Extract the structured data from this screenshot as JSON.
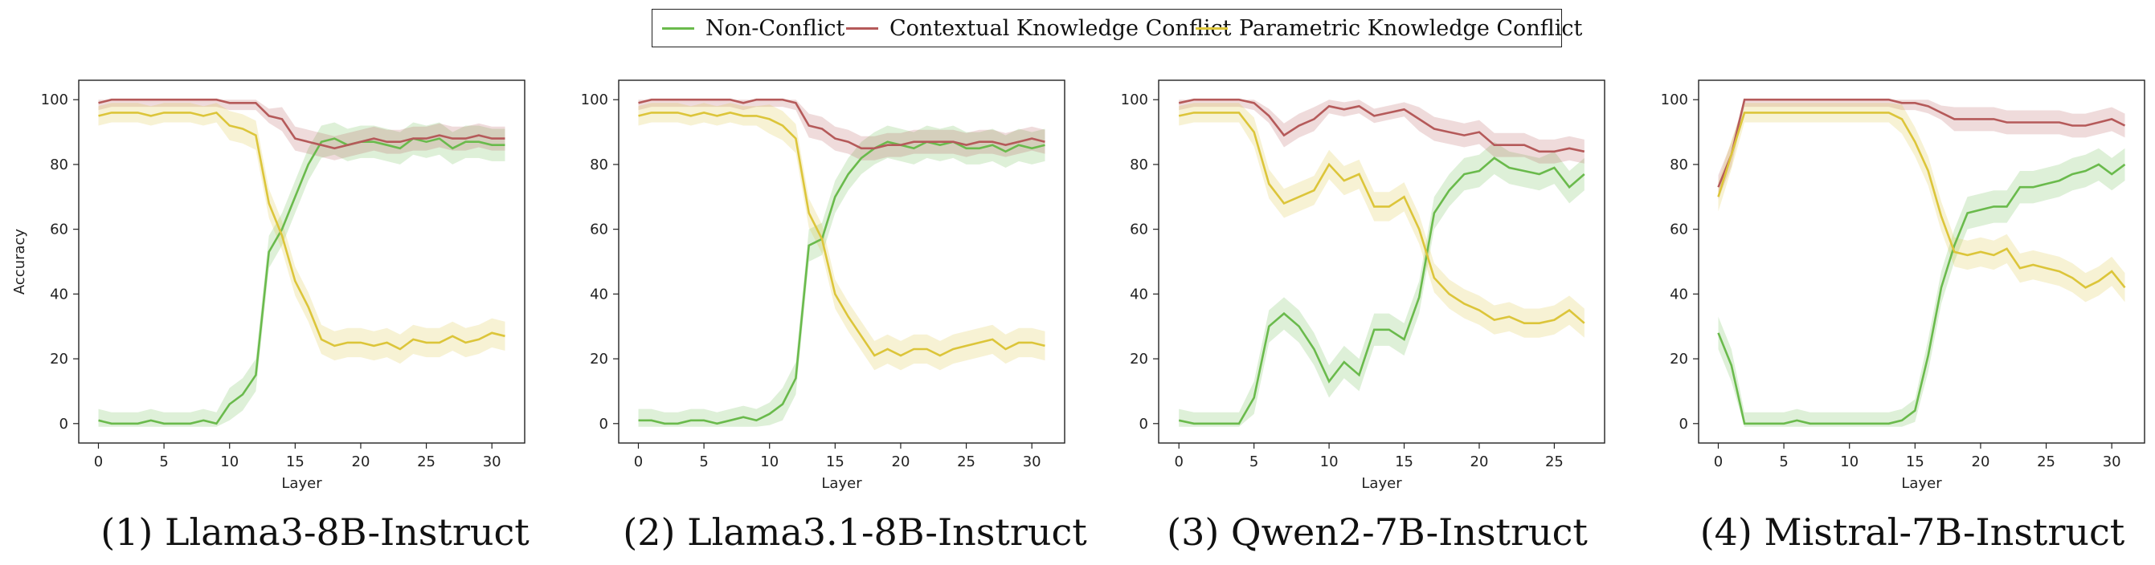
{
  "legend": {
    "items": [
      {
        "label": "Non-Conflict",
        "color": "#6aba4c"
      },
      {
        "label": "Contextual Knowledge Conflict",
        "color": "#b55a5a"
      },
      {
        "label": "Parametric Knowledge Conflict",
        "color": "#dcc53a"
      }
    ]
  },
  "chart_data": [
    {
      "type": "line",
      "title": "(1) Llama3-8B-Instruct",
      "xlabel": "Layer",
      "ylabel": "Accuracy",
      "xlim": [
        -1.5,
        32.5
      ],
      "ylim": [
        -6,
        106
      ],
      "xticks": [
        0,
        5,
        10,
        15,
        20,
        25,
        30
      ],
      "yticks": [
        0,
        20,
        40,
        60,
        80,
        100
      ],
      "grid": false,
      "series": [
        {
          "name": "Non-Conflict",
          "x": [
            0,
            1,
            2,
            3,
            4,
            5,
            6,
            7,
            8,
            9,
            10,
            11,
            12,
            13,
            14,
            15,
            16,
            17,
            18,
            19,
            20,
            21,
            22,
            23,
            24,
            25,
            26,
            27,
            28,
            29,
            30,
            31
          ],
          "y": [
            1,
            0,
            0,
            0,
            1,
            0,
            0,
            0,
            1,
            0,
            6,
            9,
            15,
            53,
            60,
            70,
            80,
            87,
            88,
            86,
            87,
            87,
            86,
            85,
            88,
            87,
            88,
            85,
            87,
            87,
            86,
            86
          ]
        },
        {
          "name": "Contextual Knowledge Conflict",
          "x": [
            0,
            1,
            2,
            3,
            4,
            5,
            6,
            7,
            8,
            9,
            10,
            11,
            12,
            13,
            14,
            15,
            16,
            17,
            18,
            19,
            20,
            21,
            22,
            23,
            24,
            25,
            26,
            27,
            28,
            29,
            30,
            31
          ],
          "y": [
            99,
            100,
            100,
            100,
            100,
            100,
            100,
            100,
            100,
            100,
            99,
            99,
            99,
            95,
            94,
            88,
            87,
            86,
            85,
            86,
            87,
            88,
            87,
            87,
            88,
            88,
            89,
            88,
            88,
            89,
            88,
            88
          ]
        },
        {
          "name": "Parametric Knowledge Conflict",
          "x": [
            0,
            1,
            2,
            3,
            4,
            5,
            6,
            7,
            8,
            9,
            10,
            11,
            12,
            13,
            14,
            15,
            16,
            17,
            18,
            19,
            20,
            21,
            22,
            23,
            24,
            25,
            26,
            27,
            28,
            29,
            30,
            31
          ],
          "y": [
            95,
            96,
            96,
            96,
            95,
            96,
            96,
            96,
            95,
            96,
            92,
            91,
            89,
            68,
            58,
            44,
            36,
            26,
            24,
            25,
            25,
            24,
            25,
            23,
            26,
            25,
            25,
            27,
            25,
            26,
            28,
            27
          ]
        }
      ]
    },
    {
      "type": "line",
      "title": "(2) Llama3.1-8B-Instruct",
      "xlabel": "Layer",
      "ylabel": "",
      "xlim": [
        -1.5,
        32.5
      ],
      "ylim": [
        -6,
        106
      ],
      "xticks": [
        0,
        5,
        10,
        15,
        20,
        25,
        30
      ],
      "yticks": [
        0,
        20,
        40,
        60,
        80,
        100
      ],
      "grid": false,
      "series": [
        {
          "name": "Non-Conflict",
          "x": [
            0,
            1,
            2,
            3,
            4,
            5,
            6,
            7,
            8,
            9,
            10,
            11,
            12,
            13,
            14,
            15,
            16,
            17,
            18,
            19,
            20,
            21,
            22,
            23,
            24,
            25,
            26,
            27,
            28,
            29,
            30,
            31
          ],
          "y": [
            1,
            1,
            0,
            0,
            1,
            1,
            0,
            1,
            2,
            1,
            3,
            6,
            14,
            55,
            57,
            70,
            77,
            82,
            85,
            87,
            86,
            85,
            87,
            86,
            87,
            85,
            85,
            86,
            84,
            86,
            85,
            86
          ]
        },
        {
          "name": "Contextual Knowledge Conflict",
          "x": [
            0,
            1,
            2,
            3,
            4,
            5,
            6,
            7,
            8,
            9,
            10,
            11,
            12,
            13,
            14,
            15,
            16,
            17,
            18,
            19,
            20,
            21,
            22,
            23,
            24,
            25,
            26,
            27,
            28,
            29,
            30,
            31
          ],
          "y": [
            99,
            100,
            100,
            100,
            100,
            100,
            100,
            100,
            99,
            100,
            100,
            100,
            99,
            92,
            91,
            88,
            87,
            85,
            85,
            86,
            86,
            87,
            87,
            87,
            87,
            86,
            87,
            87,
            86,
            87,
            88,
            87
          ]
        },
        {
          "name": "Parametric Knowledge Conflict",
          "x": [
            0,
            1,
            2,
            3,
            4,
            5,
            6,
            7,
            8,
            9,
            10,
            11,
            12,
            13,
            14,
            15,
            16,
            17,
            18,
            19,
            20,
            21,
            22,
            23,
            24,
            25,
            26,
            27,
            28,
            29,
            30,
            31
          ],
          "y": [
            95,
            96,
            96,
            96,
            95,
            96,
            95,
            96,
            95,
            95,
            94,
            92,
            88,
            65,
            57,
            40,
            33,
            27,
            21,
            23,
            21,
            23,
            23,
            21,
            23,
            24,
            25,
            26,
            23,
            25,
            25,
            24
          ]
        }
      ]
    },
    {
      "type": "line",
      "title": "(3) Qwen2-7B-Instruct",
      "xlabel": "Layer",
      "ylabel": "",
      "xlim": [
        -1.35,
        28.35
      ],
      "ylim": [
        -6,
        106
      ],
      "xticks": [
        0,
        5,
        10,
        15,
        20,
        25
      ],
      "yticks": [
        0,
        20,
        40,
        60,
        80,
        100
      ],
      "grid": false,
      "series": [
        {
          "name": "Non-Conflict",
          "x": [
            0,
            1,
            2,
            3,
            4,
            5,
            6,
            7,
            8,
            9,
            10,
            11,
            12,
            13,
            14,
            15,
            16,
            17,
            18,
            19,
            20,
            21,
            22,
            23,
            24,
            25,
            26,
            27
          ],
          "y": [
            1,
            0,
            0,
            0,
            0,
            8,
            30,
            34,
            30,
            23,
            13,
            19,
            15,
            29,
            29,
            26,
            39,
            65,
            72,
            77,
            78,
            82,
            79,
            78,
            77,
            79,
            73,
            77
          ]
        },
        {
          "name": "Contextual Knowledge Conflict",
          "x": [
            0,
            1,
            2,
            3,
            4,
            5,
            6,
            7,
            8,
            9,
            10,
            11,
            12,
            13,
            14,
            15,
            16,
            17,
            18,
            19,
            20,
            21,
            22,
            23,
            24,
            25,
            26,
            27
          ],
          "y": [
            99,
            100,
            100,
            100,
            100,
            99,
            95,
            89,
            92,
            94,
            98,
            97,
            98,
            95,
            96,
            97,
            94,
            91,
            90,
            89,
            90,
            86,
            86,
            86,
            84,
            84,
            85,
            84
          ]
        },
        {
          "name": "Parametric Knowledge Conflict",
          "x": [
            0,
            1,
            2,
            3,
            4,
            5,
            6,
            7,
            8,
            9,
            10,
            11,
            12,
            13,
            14,
            15,
            16,
            17,
            18,
            19,
            20,
            21,
            22,
            23,
            24,
            25,
            26,
            27
          ],
          "y": [
            95,
            96,
            96,
            96,
            96,
            90,
            74,
            68,
            70,
            72,
            80,
            75,
            77,
            67,
            67,
            70,
            60,
            45,
            40,
            37,
            35,
            32,
            33,
            31,
            31,
            32,
            35,
            31
          ]
        }
      ]
    },
    {
      "type": "line",
      "title": "(4) Mistral-7B-Instruct",
      "xlabel": "Layer",
      "ylabel": "",
      "xlim": [
        -1.5,
        32.5
      ],
      "ylim": [
        -6,
        106
      ],
      "xticks": [
        0,
        5,
        10,
        15,
        20,
        25,
        30
      ],
      "yticks": [
        0,
        20,
        40,
        60,
        80,
        100
      ],
      "grid": false,
      "series": [
        {
          "name": "Non-Conflict",
          "x": [
            0,
            1,
            2,
            3,
            4,
            5,
            6,
            7,
            8,
            9,
            10,
            11,
            12,
            13,
            14,
            15,
            16,
            17,
            18,
            19,
            20,
            21,
            22,
            23,
            24,
            25,
            26,
            27,
            28,
            29,
            30,
            31
          ],
          "y": [
            28,
            18,
            0,
            0,
            0,
            0,
            1,
            0,
            0,
            0,
            0,
            0,
            0,
            0,
            1,
            4,
            21,
            42,
            55,
            65,
            66,
            67,
            67,
            73,
            73,
            74,
            75,
            77,
            78,
            80,
            77,
            80
          ]
        },
        {
          "name": "Contextual Knowledge Conflict",
          "x": [
            0,
            1,
            2,
            3,
            4,
            5,
            6,
            7,
            8,
            9,
            10,
            11,
            12,
            13,
            14,
            15,
            16,
            17,
            18,
            19,
            20,
            21,
            22,
            23,
            24,
            25,
            26,
            27,
            28,
            29,
            30,
            31
          ],
          "y": [
            73,
            83,
            100,
            100,
            100,
            100,
            100,
            100,
            100,
            100,
            100,
            100,
            100,
            100,
            99,
            99,
            98,
            96,
            94,
            94,
            94,
            94,
            93,
            93,
            93,
            93,
            93,
            92,
            92,
            93,
            94,
            92
          ]
        },
        {
          "name": "Parametric Knowledge Conflict",
          "x": [
            0,
            1,
            2,
            3,
            4,
            5,
            6,
            7,
            8,
            9,
            10,
            11,
            12,
            13,
            14,
            15,
            16,
            17,
            18,
            19,
            20,
            21,
            22,
            23,
            24,
            25,
            26,
            27,
            28,
            29,
            30,
            31
          ],
          "y": [
            70,
            83,
            96,
            96,
            96,
            96,
            96,
            96,
            96,
            96,
            96,
            96,
            96,
            96,
            94,
            87,
            78,
            64,
            53,
            52,
            53,
            52,
            54,
            48,
            49,
            48,
            47,
            45,
            42,
            44,
            47,
            42
          ]
        }
      ]
    }
  ]
}
